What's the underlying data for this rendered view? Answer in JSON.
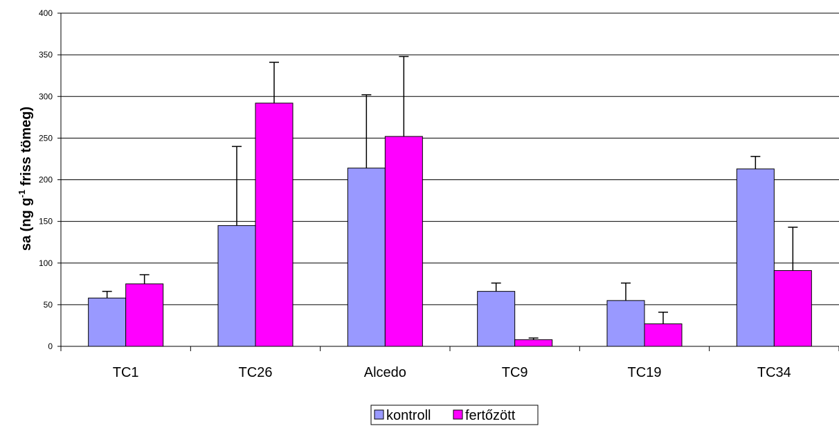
{
  "chart_data": {
    "type": "bar",
    "categories": [
      "TC1",
      "TC26",
      "Alcedo",
      "TC9",
      "TC19",
      "TC34"
    ],
    "series": [
      {
        "name": "kontroll",
        "color": "#9999ff",
        "values": [
          58,
          145,
          214,
          66,
          55,
          213
        ],
        "error_upper": [
          8,
          95,
          88,
          10,
          21,
          15
        ]
      },
      {
        "name": "fertőzött",
        "color": "#ff00ff",
        "values": [
          75,
          292,
          252,
          8,
          27,
          91
        ],
        "error_upper": [
          11,
          49,
          96,
          2,
          14,
          52
        ]
      }
    ],
    "ylabel_main": "sa (ng g",
    "ylabel_sup": "-1",
    "ylabel_rest": " friss tömeg)",
    "ylim": [
      0,
      400
    ],
    "yticks": [
      0,
      50,
      100,
      150,
      200,
      250,
      300,
      350,
      400
    ],
    "grid": true,
    "legend_position": "bottom"
  }
}
